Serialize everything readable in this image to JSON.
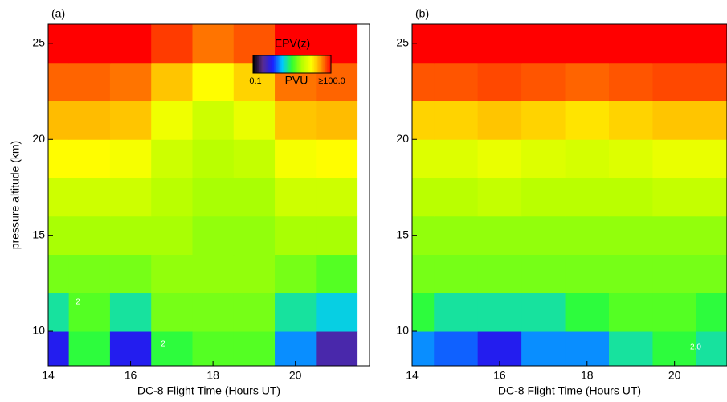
{
  "chart_data": [
    {
      "type": "contour",
      "panel_label": "(a)",
      "ylabel": "pressure altitude (km)",
      "xlabel": "DC-8 Flight Time (Hours UT)",
      "xlim": [
        14,
        21.8
      ],
      "xticks": [
        14,
        16,
        18,
        20
      ],
      "ylim": [
        8.2,
        26
      ],
      "yticks": [
        10,
        15,
        20,
        25
      ],
      "x": [
        14,
        15,
        16,
        17,
        18,
        19,
        20,
        21
      ],
      "y": [
        9,
        11,
        13,
        15,
        17,
        19,
        21,
        23,
        25
      ],
      "values": [
        [
          0.5,
          3,
          0.5,
          3,
          4,
          4,
          1,
          0.3
        ],
        [
          2,
          4,
          2,
          5,
          5,
          5,
          2,
          1.5
        ],
        [
          5,
          5,
          5,
          6,
          6,
          6,
          5,
          4
        ],
        [
          7,
          7,
          7,
          7,
          6,
          6,
          7,
          7
        ],
        [
          10,
          10,
          10,
          8,
          7,
          7,
          10,
          10
        ],
        [
          18,
          18,
          16,
          10,
          8,
          9,
          16,
          18
        ],
        [
          30,
          30,
          28,
          15,
          10,
          14,
          28,
          30
        ],
        [
          55,
          55,
          50,
          28,
          18,
          25,
          50,
          55
        ],
        [
          100,
          100,
          100,
          70,
          50,
          60,
          100,
          100
        ]
      ],
      "contour_labels": [
        "2",
        "2",
        "2"
      ],
      "colorbar": {
        "title": "EPV(z)",
        "unit": "PVU",
        "min": 0.1,
        "max": {
          "value": 100,
          "label": "≥100.0"
        },
        "log": true,
        "colors": [
          "#000000",
          "#5a2d8c",
          "#1a1aff",
          "#00c8ff",
          "#30ff30",
          "#b4ff00",
          "#ffff00",
          "#ff9000",
          "#ff0000"
        ]
      }
    },
    {
      "type": "contour",
      "panel_label": "(b)",
      "xlabel": "DC-8 Flight Time (Hours UT)",
      "xlim": [
        14,
        21.2
      ],
      "xticks": [
        14,
        16,
        18,
        20
      ],
      "ylim": [
        8.2,
        26
      ],
      "yticks": [
        10,
        15,
        20,
        25
      ],
      "x": [
        14,
        15,
        16,
        17,
        18,
        19,
        20,
        21
      ],
      "y": [
        9,
        11,
        13,
        15,
        17,
        19,
        21,
        23,
        25
      ],
      "values": [
        [
          1,
          0.8,
          0.5,
          1,
          1,
          2,
          3,
          2
        ],
        [
          3,
          2,
          2,
          2,
          3,
          4,
          4,
          3
        ],
        [
          5,
          5,
          5,
          5,
          5,
          5,
          5,
          5
        ],
        [
          6,
          6,
          6,
          6,
          6,
          6,
          6,
          6
        ],
        [
          8,
          8,
          9,
          8,
          8,
          8,
          9,
          9
        ],
        [
          12,
          12,
          14,
          12,
          11,
          12,
          14,
          14
        ],
        [
          25,
          25,
          28,
          25,
          22,
          25,
          28,
          28
        ],
        [
          60,
          60,
          65,
          60,
          55,
          60,
          65,
          65
        ],
        [
          100,
          100,
          100,
          100,
          100,
          100,
          100,
          100
        ]
      ],
      "contour_labels": [
        "2.0"
      ]
    }
  ]
}
